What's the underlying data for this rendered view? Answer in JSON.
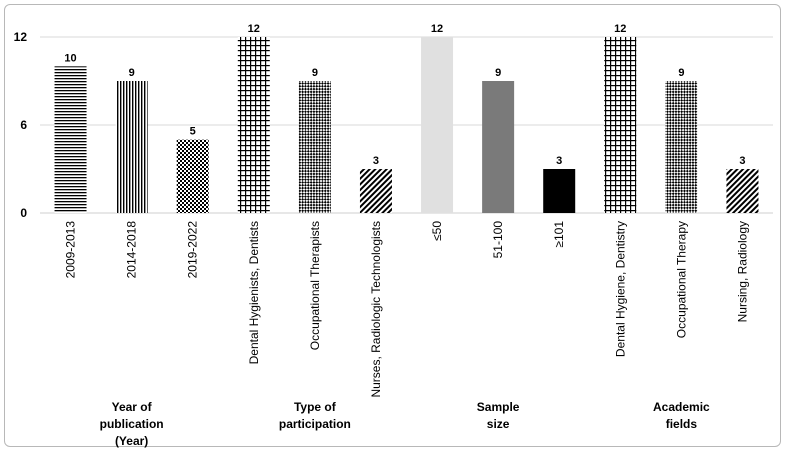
{
  "chart_data": {
    "type": "bar",
    "ylim": [
      0,
      12
    ],
    "yticks": [
      "0",
      "6",
      "12"
    ],
    "grid": true,
    "categories": [
      "2009-2013",
      "2014-2018",
      "2019-2022",
      "Dental Hygienists, Dentists",
      "Occupational Therapists",
      "Nurses, Radiologic Technologists",
      "≤50",
      "51-100",
      "≥101",
      "Dental Hygiene, Dentistry",
      "Occupational Therapy",
      "Nursing, Radiology"
    ],
    "values": [
      10,
      9,
      5,
      12,
      9,
      3,
      12,
      9,
      3,
      12,
      9,
      3
    ],
    "value_labels": [
      "10",
      "9",
      "5",
      "12",
      "9",
      "3",
      "12",
      "9",
      "3",
      "12",
      "9",
      "3"
    ],
    "bar_patterns": [
      "horizontal-lines",
      "vertical-lines",
      "checker",
      "grid",
      "diagonal-checker",
      "diagonal-stripes",
      "light-gray",
      "dark-gray",
      "black",
      "grid",
      "diagonal-checker",
      "diagonal-stripes"
    ],
    "groups": [
      {
        "label_lines": [
          "Year of",
          "publication",
          "(Year)"
        ]
      },
      {
        "label_lines": [
          "Type of",
          "participation"
        ]
      },
      {
        "label_lines": [
          "Sample",
          "size"
        ]
      },
      {
        "label_lines": [
          "Academic",
          "fields"
        ]
      }
    ],
    "colors": {
      "light_gray": "#e0e0e0",
      "dark_gray": "#7a7a7a",
      "black": "#000000"
    }
  }
}
